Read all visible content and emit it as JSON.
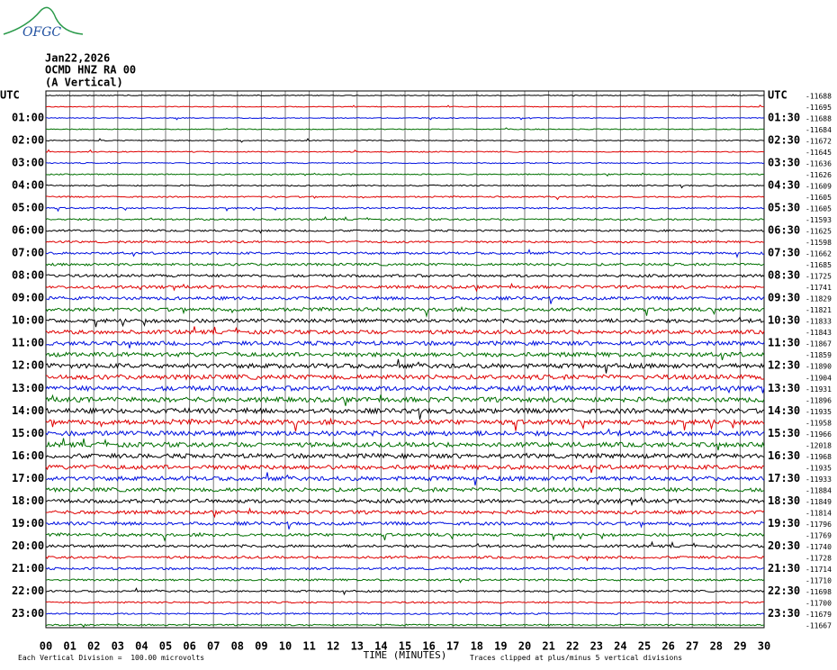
{
  "logo": "OFGC",
  "header": {
    "date": "Jan22,2026",
    "station": "OCMD HNZ RA 00",
    "component": "(A Vertical)"
  },
  "left_labels": [
    "UTC",
    "01:00",
    "02:00",
    "03:00",
    "04:00",
    "05:00",
    "06:00",
    "07:00",
    "08:00",
    "09:00",
    "10:00",
    "11:00",
    "12:00",
    "13:00",
    "14:00",
    "15:00",
    "16:00",
    "17:00",
    "18:00",
    "19:00",
    "20:00",
    "21:00",
    "22:00",
    "23:00"
  ],
  "right_labels": [
    "UTC",
    "01:30",
    "02:30",
    "03:30",
    "04:30",
    "05:30",
    "06:30",
    "07:30",
    "08:30",
    "09:30",
    "10:30",
    "11:30",
    "12:30",
    "13:30",
    "14:30",
    "15:30",
    "16:30",
    "17:30",
    "18:30",
    "19:30",
    "20:30",
    "21:30",
    "22:30",
    "23:30"
  ],
  "offsets": [
    "-11688",
    "-11695",
    "-11688",
    "-11684",
    "-11672",
    "-11645",
    "-11636",
    "-11626",
    "-11609",
    "-11605",
    "-11605",
    "-11593",
    "-11625",
    "-11598",
    "-11662",
    "-11685",
    "-11725",
    "-11741",
    "-11829",
    "-11821",
    "-11833",
    "-11843",
    "-11867",
    "-11859",
    "-11890",
    "-11904",
    "-11931",
    "-11896",
    "-11935",
    "-11958",
    "-11966",
    "-12018",
    "-11968",
    "-11935",
    "-11933",
    "-11884",
    "-11849",
    "-11814",
    "-11796",
    "-11769",
    "-11740",
    "-11728",
    "-11714",
    "-11710",
    "-11698",
    "-11700",
    "-11679",
    "-11667"
  ],
  "x_axis": {
    "ticks": [
      "00",
      "01",
      "02",
      "03",
      "04",
      "05",
      "06",
      "07",
      "08",
      "09",
      "10",
      "11",
      "12",
      "13",
      "14",
      "15",
      "16",
      "17",
      "18",
      "19",
      "20",
      "21",
      "22",
      "23",
      "24",
      "25",
      "26",
      "27",
      "28",
      "29",
      "30"
    ],
    "title": "TIME (MINUTES)"
  },
  "footer": {
    "scale": "Each Vertical Division =  100.00 microvolts",
    "clip": "Traces clipped at plus/minus 5 vertical divisions"
  }
}
